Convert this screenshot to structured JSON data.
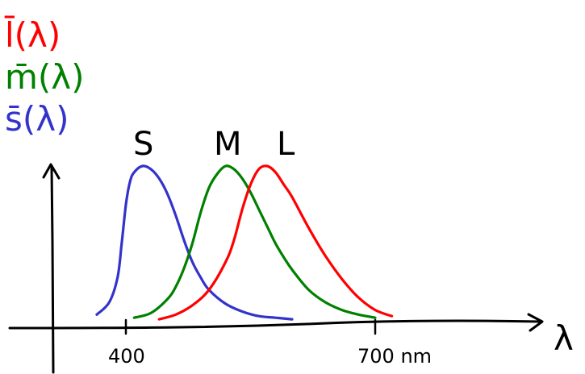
{
  "chart_data": {
    "type": "line",
    "title": "",
    "xlabel": "λ",
    "ylabel": "",
    "xlim": [
      310,
      900
    ],
    "ylim": [
      0,
      1
    ],
    "grid": false,
    "legend_placement": "top-left",
    "x_ticks": [
      {
        "value": 400,
        "label": "400"
      },
      {
        "value": 700,
        "label": "700 nm"
      }
    ],
    "legend": [
      {
        "label": "l̄(λ)",
        "color": "#ff0000"
      },
      {
        "label": "m̄(λ)",
        "color": "#008000"
      },
      {
        "label": "s̄(λ)",
        "color": "#3333cc"
      }
    ],
    "peak_labels": [
      {
        "text": "S",
        "x": 420
      },
      {
        "text": "M",
        "x": 530
      },
      {
        "text": "L",
        "x": 560
      }
    ],
    "series": [
      {
        "name": "S",
        "color": "#3333cc",
        "x": [
          365,
          380,
          390,
          395,
          400,
          405,
          410,
          420,
          430,
          440,
          450,
          460,
          470,
          480,
          490,
          500,
          520,
          540,
          560,
          580,
          600
        ],
        "y": [
          0.04,
          0.12,
          0.28,
          0.5,
          0.75,
          0.9,
          0.96,
          1.0,
          0.98,
          0.92,
          0.82,
          0.68,
          0.52,
          0.38,
          0.28,
          0.2,
          0.11,
          0.06,
          0.03,
          0.02,
          0.01
        ]
      },
      {
        "name": "M",
        "color": "#008000",
        "x": [
          410,
          430,
          450,
          460,
          470,
          480,
          490,
          500,
          510,
          520,
          530,
          540,
          550,
          560,
          570,
          580,
          590,
          600,
          620,
          640,
          660,
          680,
          700
        ],
        "y": [
          0.02,
          0.05,
          0.14,
          0.22,
          0.34,
          0.5,
          0.7,
          0.86,
          0.95,
          1.0,
          0.98,
          0.92,
          0.83,
          0.72,
          0.61,
          0.5,
          0.41,
          0.33,
          0.2,
          0.12,
          0.07,
          0.04,
          0.02
        ]
      },
      {
        "name": "L",
        "color": "#ff0000",
        "x": [
          440,
          460,
          480,
          500,
          520,
          530,
          540,
          550,
          560,
          570,
          580,
          590,
          600,
          620,
          640,
          660,
          680,
          700,
          720
        ],
        "y": [
          0.01,
          0.04,
          0.1,
          0.2,
          0.38,
          0.52,
          0.72,
          0.88,
          0.98,
          1.0,
          0.96,
          0.88,
          0.8,
          0.6,
          0.42,
          0.27,
          0.15,
          0.07,
          0.03
        ]
      }
    ]
  }
}
